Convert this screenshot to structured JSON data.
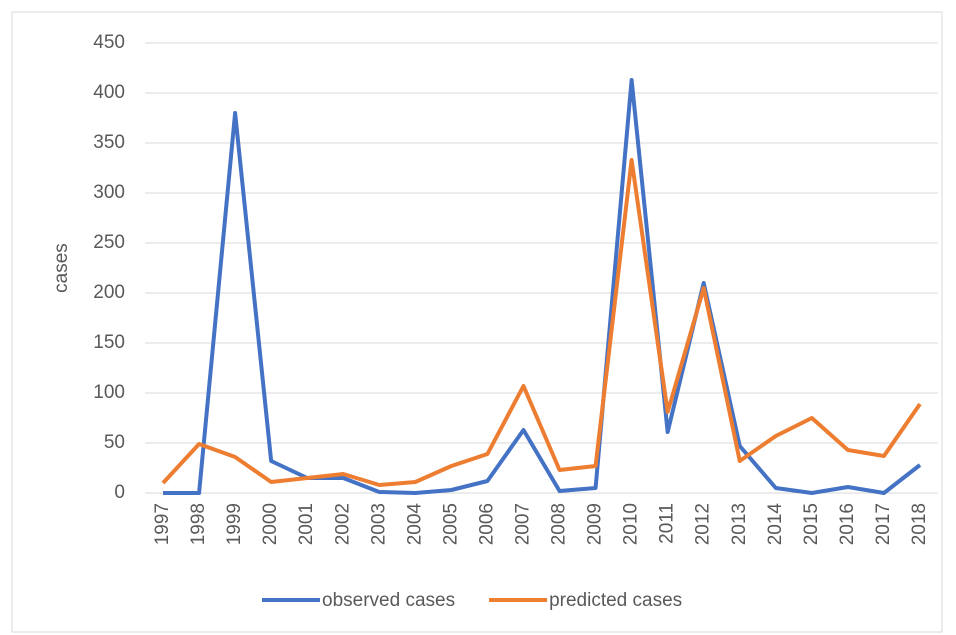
{
  "chart_data": {
    "type": "line",
    "y_label": "cases",
    "categories": [
      "1997",
      "1998",
      "1999",
      "2000",
      "2001",
      "2002",
      "2003",
      "2004",
      "2005",
      "2006",
      "2007",
      "2008",
      "2009",
      "2010",
      "2011",
      "2012",
      "2013",
      "2014",
      "2015",
      "2016",
      "2017",
      "2018"
    ],
    "series": [
      {
        "name": "observed cases",
        "color": "#4472c4",
        "values": [
          0,
          0,
          380,
          32,
          15,
          15,
          1,
          0,
          3,
          12,
          63,
          2,
          5,
          413,
          61,
          210,
          47,
          5,
          0,
          6,
          0,
          28
        ]
      },
      {
        "name": "predicted cases",
        "color": "#ed7d31",
        "values": [
          10,
          49,
          36,
          11,
          15,
          19,
          8,
          11,
          27,
          39,
          107,
          23,
          27,
          333,
          81,
          205,
          32,
          57,
          75,
          43,
          37,
          89
        ]
      }
    ],
    "ylim": [
      0,
      450
    ],
    "yticks": [
      0,
      50,
      100,
      150,
      200,
      250,
      300,
      350,
      400,
      450
    ],
    "grid": true,
    "legend": "bottom"
  }
}
